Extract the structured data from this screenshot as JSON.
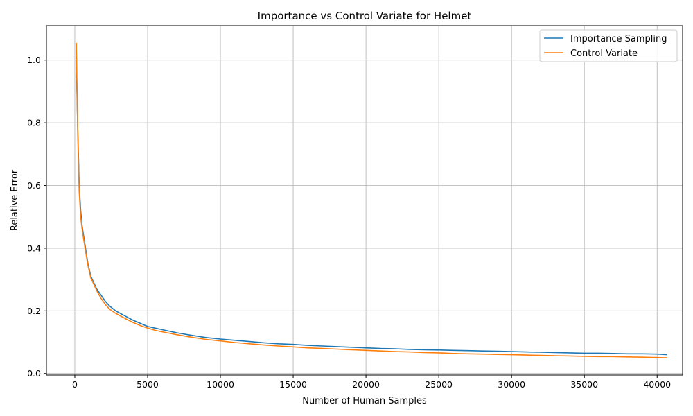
{
  "chart_data": {
    "type": "line",
    "title": "Importance vs Control Variate for Helmet",
    "xlabel": "Number of Human Samples",
    "ylabel": "Relative Error",
    "xlim": [
      -1950,
      41750
    ],
    "ylim": [
      -0.005,
      1.11
    ],
    "xticks": [
      0,
      5000,
      10000,
      15000,
      20000,
      25000,
      30000,
      35000,
      40000
    ],
    "xtick_labels": [
      "0",
      "5000",
      "10000",
      "15000",
      "20000",
      "25000",
      "30000",
      "35000",
      "40000"
    ],
    "yticks": [
      0.0,
      0.2,
      0.4,
      0.6,
      0.8,
      1.0
    ],
    "ytick_labels": [
      "0.0",
      "0.2",
      "0.4",
      "0.6",
      "0.8",
      "1.0"
    ],
    "grid": true,
    "legend_position": "upper right",
    "x": [
      100,
      200,
      300,
      400,
      500,
      700,
      900,
      1100,
      1300,
      1500,
      1800,
      2100,
      2400,
      2800,
      3200,
      3600,
      4000,
      4500,
      5000,
      5500,
      6000,
      7000,
      8000,
      9000,
      10000,
      11000,
      12000,
      13000,
      14000,
      15000,
      16000,
      17000,
      18000,
      19000,
      20000,
      21000,
      22000,
      23000,
      24000,
      25000,
      26000,
      27000,
      28000,
      29000,
      30000,
      31000,
      32000,
      33000,
      34000,
      35000,
      36000,
      37000,
      38000,
      39000,
      40000,
      40700
    ],
    "series": [
      {
        "name": "Importance Sampling",
        "color": "#1f77b4",
        "values": [
          1.0,
          0.78,
          0.6,
          0.52,
          0.47,
          0.41,
          0.35,
          0.31,
          0.29,
          0.27,
          0.25,
          0.23,
          0.215,
          0.2,
          0.19,
          0.18,
          0.17,
          0.16,
          0.15,
          0.145,
          0.14,
          0.13,
          0.122,
          0.115,
          0.11,
          0.106,
          0.102,
          0.098,
          0.095,
          0.093,
          0.09,
          0.088,
          0.086,
          0.084,
          0.082,
          0.08,
          0.079,
          0.077,
          0.076,
          0.075,
          0.074,
          0.073,
          0.072,
          0.071,
          0.07,
          0.069,
          0.068,
          0.067,
          0.066,
          0.065,
          0.065,
          0.064,
          0.063,
          0.063,
          0.062,
          0.06
        ]
      },
      {
        "name": "Control Variate",
        "color": "#ff7f0e",
        "values": [
          1.055,
          0.76,
          0.58,
          0.5,
          0.46,
          0.4,
          0.345,
          0.305,
          0.285,
          0.265,
          0.24,
          0.22,
          0.205,
          0.192,
          0.182,
          0.172,
          0.163,
          0.153,
          0.145,
          0.138,
          0.133,
          0.124,
          0.116,
          0.109,
          0.104,
          0.099,
          0.095,
          0.091,
          0.088,
          0.085,
          0.082,
          0.08,
          0.078,
          0.076,
          0.074,
          0.072,
          0.07,
          0.069,
          0.067,
          0.066,
          0.064,
          0.063,
          0.062,
          0.061,
          0.06,
          0.059,
          0.058,
          0.057,
          0.056,
          0.055,
          0.054,
          0.054,
          0.053,
          0.052,
          0.051,
          0.05
        ]
      }
    ]
  }
}
